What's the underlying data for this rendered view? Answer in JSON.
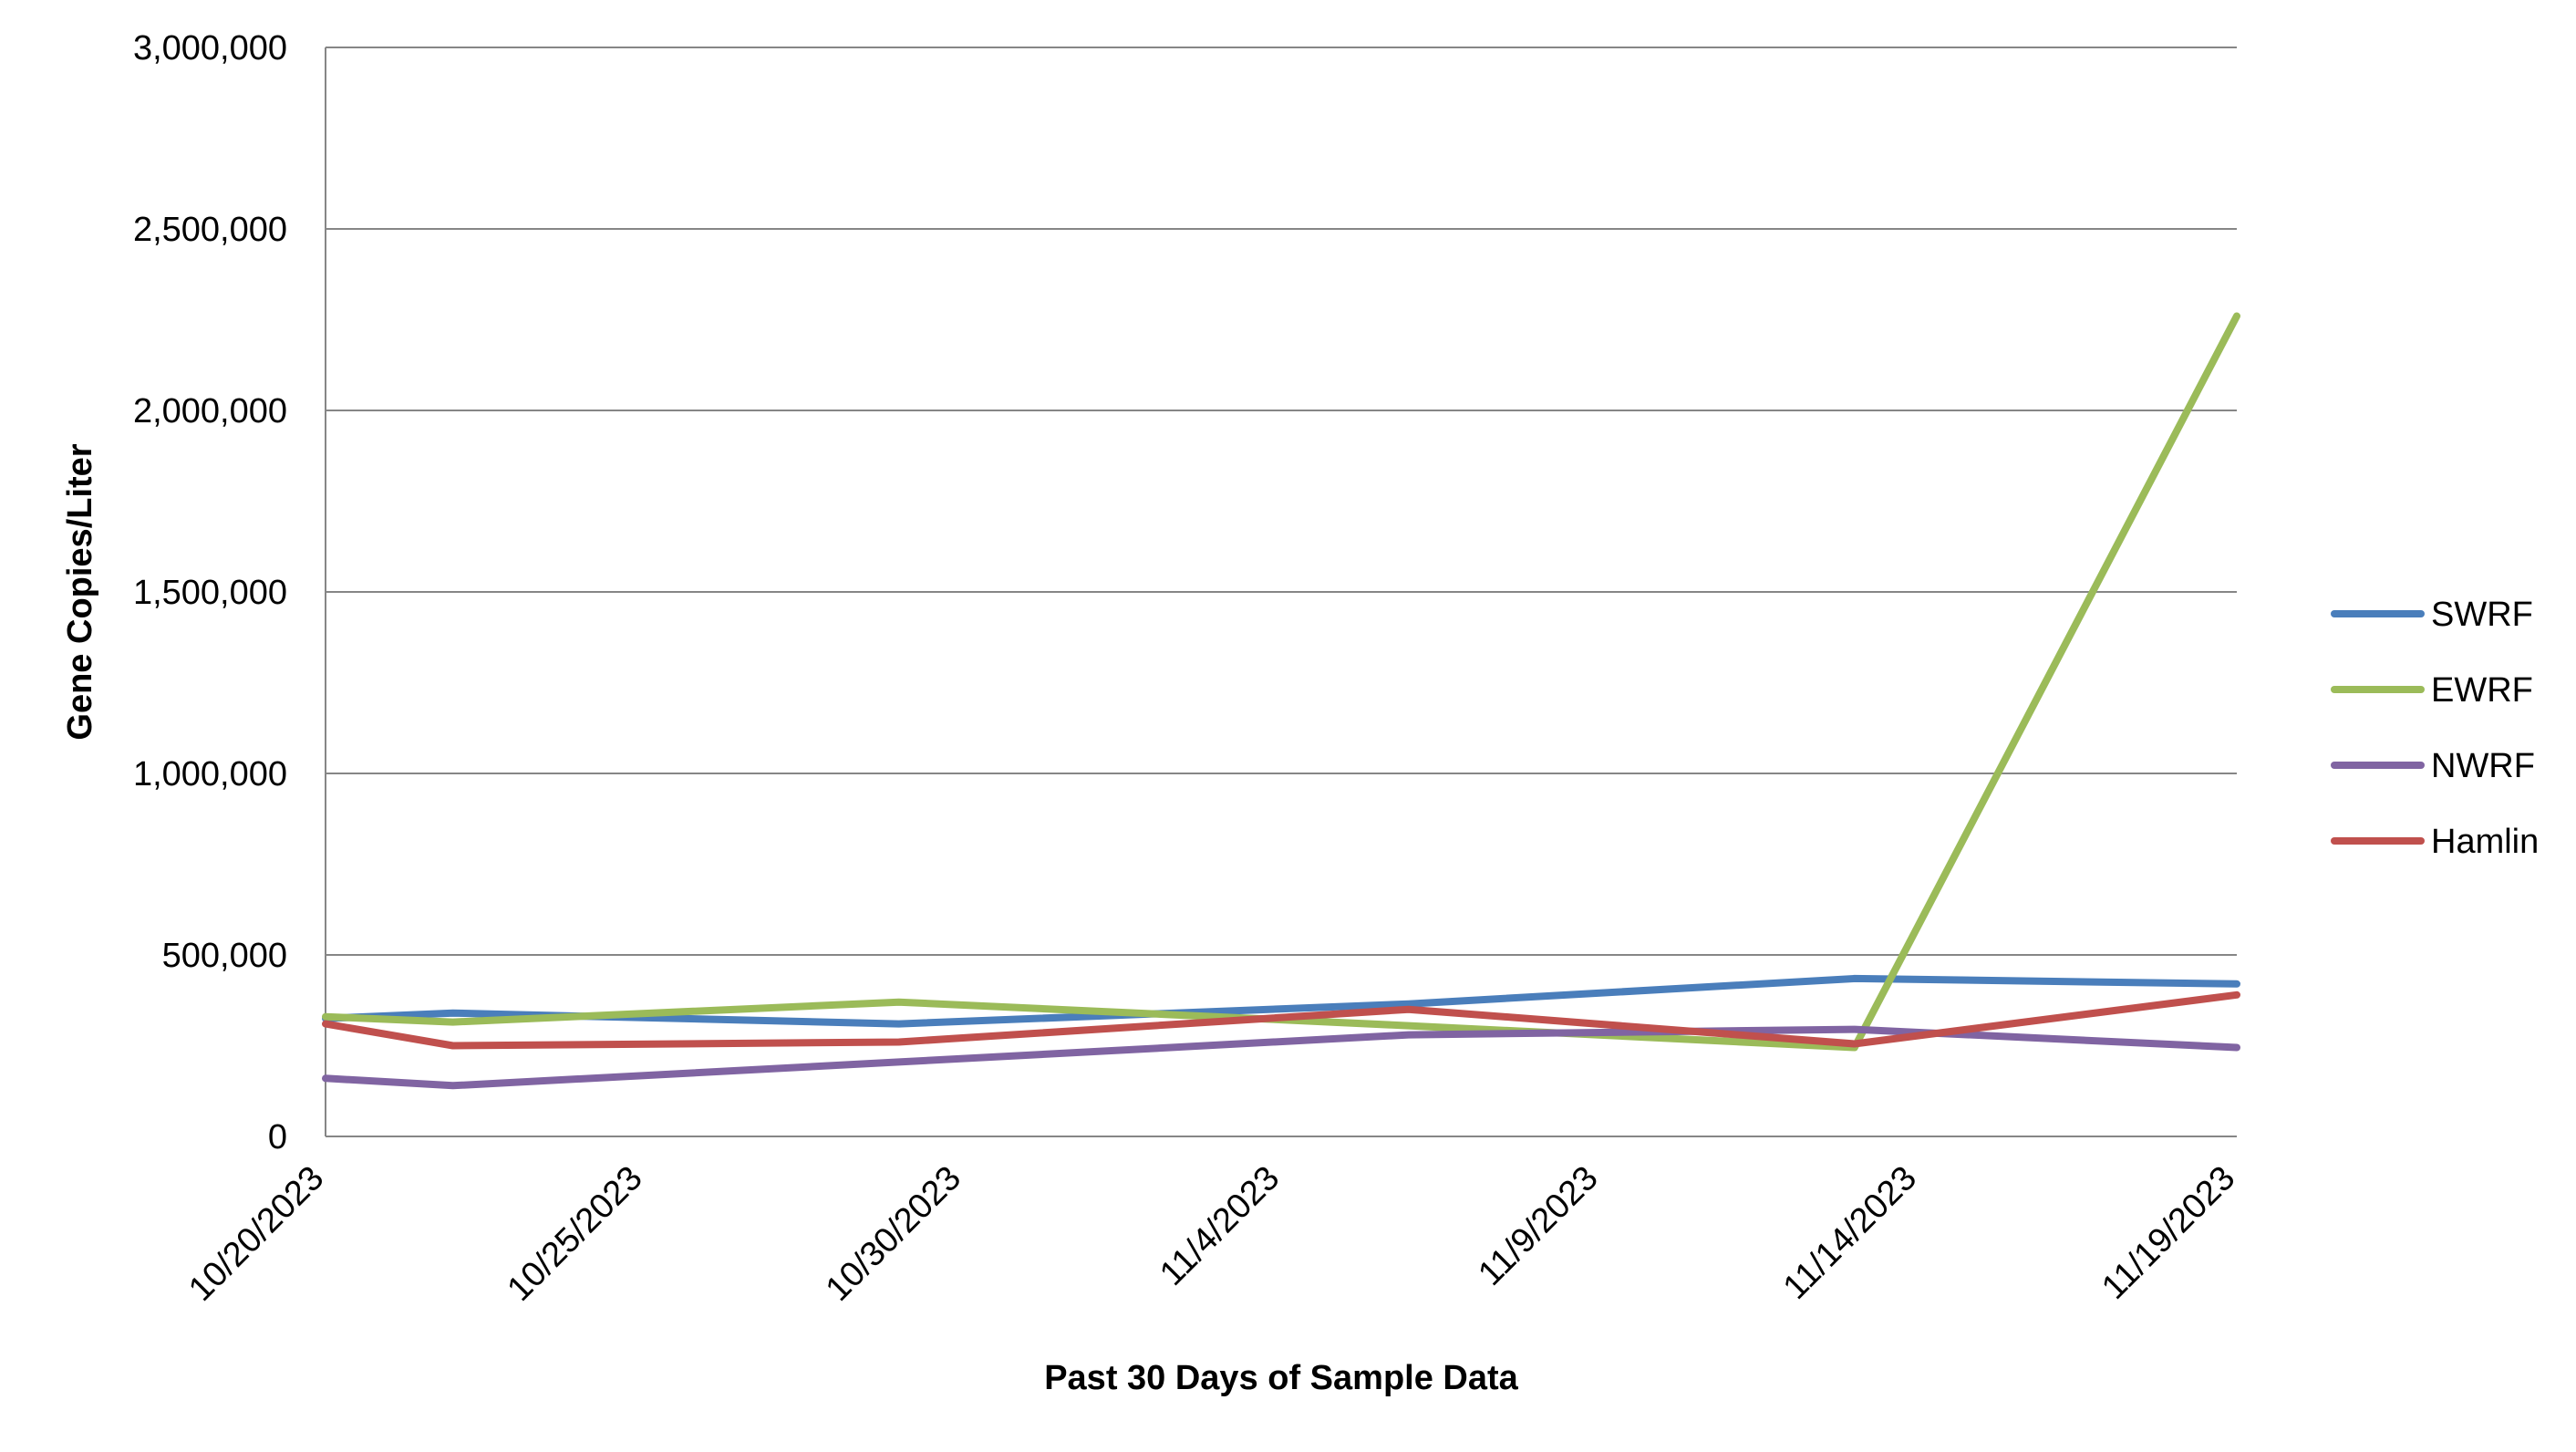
{
  "chart_data": {
    "type": "line",
    "title": "",
    "xlabel": "Past 30 Days of Sample Data",
    "ylabel": "Gene Copies/Liter",
    "x_type": "date",
    "xlim": [
      "2023-10-20",
      "2023-11-19"
    ],
    "ylim": [
      0,
      3000000
    ],
    "x_ticks": [
      "2023-10-20",
      "2023-10-25",
      "2023-10-30",
      "2023-11-04",
      "2023-11-09",
      "2023-11-14",
      "2023-11-19"
    ],
    "x_tick_labels": [
      "10/20/2023",
      "10/25/2023",
      "10/30/2023",
      "11/4/2023",
      "11/9/2023",
      "11/14/2023",
      "11/19/2023"
    ],
    "y_ticks": [
      0,
      500000,
      1000000,
      1500000,
      2000000,
      2500000,
      3000000
    ],
    "y_tick_labels": [
      "0",
      "500,000",
      "1,000,000",
      "1,500,000",
      "2,000,000",
      "2,500,000",
      "3,000,000"
    ],
    "grid": "horizontal",
    "legend_position": "right",
    "series": [
      {
        "name": "SWRF",
        "color": "#4a7ebb",
        "points": [
          {
            "x": "2023-10-20",
            "y": 325000
          },
          {
            "x": "2023-10-22",
            "y": 340000
          },
          {
            "x": "2023-10-29",
            "y": 310000
          },
          {
            "x": "2023-11-06",
            "y": 365000
          },
          {
            "x": "2023-11-13",
            "y": 435000
          },
          {
            "x": "2023-11-19",
            "y": 420000
          }
        ]
      },
      {
        "name": "EWRF",
        "color": "#9bbb59",
        "points": [
          {
            "x": "2023-10-20",
            "y": 330000
          },
          {
            "x": "2023-10-22",
            "y": 315000
          },
          {
            "x": "2023-10-29",
            "y": 370000
          },
          {
            "x": "2023-11-06",
            "y": 305000
          },
          {
            "x": "2023-11-13",
            "y": 245000
          },
          {
            "x": "2023-11-19",
            "y": 2260000
          }
        ]
      },
      {
        "name": "NWRF",
        "color": "#8064a2",
        "points": [
          {
            "x": "2023-10-20",
            "y": 160000
          },
          {
            "x": "2023-10-22",
            "y": 140000
          },
          {
            "x": "2023-10-29",
            "y": 205000
          },
          {
            "x": "2023-11-06",
            "y": 280000
          },
          {
            "x": "2023-11-13",
            "y": 295000
          },
          {
            "x": "2023-11-19",
            "y": 245000
          }
        ]
      },
      {
        "name": "Hamlin",
        "color": "#c0504d",
        "points": [
          {
            "x": "2023-10-20",
            "y": 310000
          },
          {
            "x": "2023-10-22",
            "y": 250000
          },
          {
            "x": "2023-10-29",
            "y": 260000
          },
          {
            "x": "2023-11-06",
            "y": 350000
          },
          {
            "x": "2023-11-13",
            "y": 255000
          },
          {
            "x": "2023-11-19",
            "y": 390000
          }
        ]
      }
    ]
  }
}
